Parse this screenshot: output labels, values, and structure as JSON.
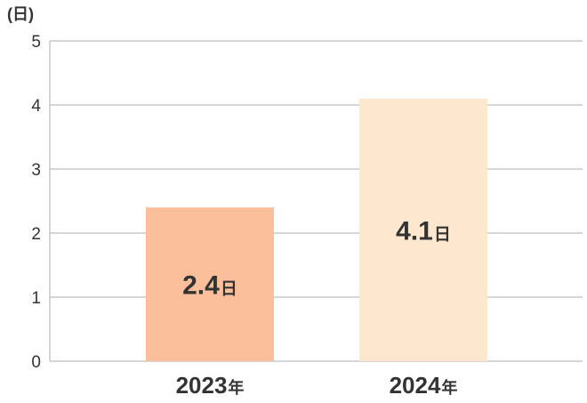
{
  "chart_data": {
    "type": "bar",
    "unit_label": "(日)",
    "categories": [
      "2023年",
      "2024年"
    ],
    "category_parts": [
      {
        "number": "2023",
        "suffix": "年"
      },
      {
        "number": "2024",
        "suffix": "年"
      }
    ],
    "values": [
      2.4,
      4.1
    ],
    "value_labels": [
      {
        "number": "2.4",
        "suffix": "日"
      },
      {
        "number": "4.1",
        "suffix": "日"
      }
    ],
    "bar_colors": [
      "#fbbf9b",
      "#fde7cf"
    ],
    "yticks": [
      "0",
      "1",
      "2",
      "3",
      "4",
      "5"
    ],
    "ylim": [
      0,
      5
    ],
    "grid": true,
    "grid_color": "#c8c8c8",
    "title": "",
    "xlabel": "",
    "ylabel": ""
  }
}
